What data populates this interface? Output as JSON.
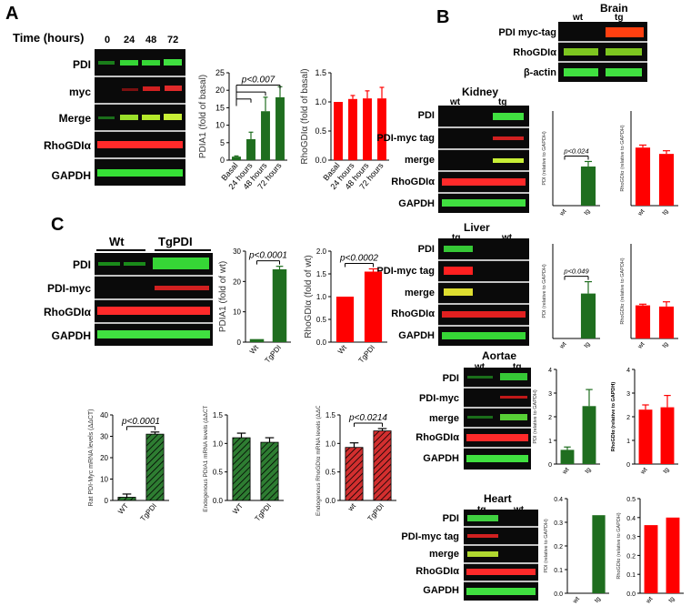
{
  "panels": {
    "A": {
      "letter": "A",
      "time_label": "Time (hours)",
      "time_points": [
        "0",
        "24",
        "48",
        "72"
      ],
      "rows": [
        "PDI",
        "myc",
        "Merge",
        "RhoGDIα",
        "GAPDH"
      ]
    },
    "B": {
      "letter": "B",
      "brain": {
        "title": "Brain",
        "lanes": [
          "wt",
          "tg"
        ],
        "rows": [
          "PDI myc-tag",
          "RhoGDIα",
          "β-actin"
        ]
      },
      "kidney": {
        "title": "Kidney",
        "lanes": [
          "wt",
          "tg"
        ],
        "rows": [
          "PDI",
          "PDI-myc tag",
          "merge",
          "RhoGDIα",
          "GAPDH"
        ]
      },
      "liver": {
        "title": "Liver",
        "lanes": [
          "tg",
          "wt"
        ],
        "rows": [
          "PDI",
          "PDI-myc tag",
          "merge",
          "RhoGDIα",
          "GAPDH"
        ]
      },
      "aortae": {
        "title": "Aortae",
        "lanes": [
          "wt",
          "tg"
        ],
        "rows": [
          "PDI",
          "PDI-myc",
          "merge",
          "RhoGDIα",
          "GAPDH"
        ]
      },
      "heart": {
        "title": "Heart",
        "lanes": [
          "tg",
          "wt"
        ],
        "rows": [
          "PDI",
          "PDI-myc tag",
          "merge",
          "RhoGDIα",
          "GAPDH"
        ]
      }
    },
    "C": {
      "letter": "C",
      "groups": [
        "Wt",
        "TgPDI"
      ],
      "rows": [
        "PDI",
        "PDI-myc",
        "RhoGDIα",
        "GAPDH"
      ]
    }
  },
  "colors": {
    "green": "#1f6e1f",
    "red": "#ff0000",
    "green_hatch": "#2e7d32",
    "red_hatch": "#d32f2f"
  },
  "chart_data": [
    {
      "id": "A-pdia1",
      "type": "bar",
      "categories": [
        "Basal",
        "24 hours",
        "48 hours",
        "72 hours"
      ],
      "values": [
        1,
        6,
        14,
        18
      ],
      "errors": [
        0.2,
        2,
        4,
        3
      ],
      "ylabel": "PDIA1  (fold of basal)",
      "ylim": [
        0,
        25
      ],
      "yticks": [
        "0",
        "5",
        "10",
        "15",
        "20",
        "25"
      ],
      "annotation": "p<0.007",
      "color": "#1f6e1f"
    },
    {
      "id": "A-rhogdi",
      "type": "bar",
      "categories": [
        "Basal",
        "24 hours",
        "48 hours",
        "72 hours"
      ],
      "values": [
        1.0,
        1.05,
        1.06,
        1.06
      ],
      "errors": [
        0,
        0.06,
        0.13,
        0.19
      ],
      "ylabel": "RhoGDIα  (fold of basal)",
      "ylim": [
        0,
        1.5
      ],
      "yticks": [
        "0.0",
        "0.5",
        "1.0",
        "1.5"
      ],
      "color": "#ff0000"
    },
    {
      "id": "B-kidney-pdi",
      "type": "bar",
      "categories": [
        "wt",
        "tg"
      ],
      "values": [
        0,
        0.62
      ],
      "errors": [
        0,
        0.08
      ],
      "ylabel": "PDI (relative to GAPDH)",
      "ylim": [
        0,
        1.5
      ],
      "yticks": [],
      "annotation": "p<0.024",
      "color": "#1f6e1f"
    },
    {
      "id": "B-kidney-rho",
      "type": "bar",
      "categories": [
        "wt",
        "tg"
      ],
      "values": [
        0.92,
        0.82
      ],
      "errors": [
        0.04,
        0.05
      ],
      "ylabel": "RhoGDIα (relative to GAPDH)",
      "ylim": [
        0,
        1.5
      ],
      "yticks": [],
      "color": "#ff0000"
    },
    {
      "id": "B-liver-pdi",
      "type": "bar",
      "categories": [
        "wt",
        "tg"
      ],
      "values": [
        0,
        0.38
      ],
      "errors": [
        0,
        0.1
      ],
      "ylabel": "PDI (relative to GAPDH)",
      "ylim": [
        0,
        0.8
      ],
      "yticks": [],
      "annotation": "p<0.049",
      "color": "#1f6e1f"
    },
    {
      "id": "B-liver-rho",
      "type": "bar",
      "categories": [
        "wt",
        "tg"
      ],
      "values": [
        0.28,
        0.27
      ],
      "errors": [
        0.01,
        0.04
      ],
      "ylabel": "RhoGDIα (relative to GAPDH)",
      "ylim": [
        0,
        0.8
      ],
      "yticks": [],
      "color": "#ff0000"
    },
    {
      "id": "B-aortae-pdi",
      "type": "bar",
      "categories": [
        "wt",
        "tg"
      ],
      "values": [
        0.6,
        2.45
      ],
      "errors": [
        0.12,
        0.7
      ],
      "ylabel": "PDI (relative to GAPDH)",
      "ylim": [
        0,
        4
      ],
      "yticks": [
        "0",
        "1",
        "2",
        "3",
        "4"
      ],
      "color": "#1f6e1f"
    },
    {
      "id": "B-aortae-rho",
      "type": "bar",
      "categories": [
        "wt",
        "tg"
      ],
      "values": [
        2.3,
        2.4
      ],
      "errors": [
        0.2,
        0.5
      ],
      "ylabel": "RhoGDIα (relative to GAPDH)",
      "ylim": [
        0,
        4
      ],
      "yticks": [
        "0",
        "1",
        "2",
        "3",
        "4"
      ],
      "color": "#ff0000"
    },
    {
      "id": "B-heart-pdi",
      "type": "bar",
      "categories": [
        "wt",
        "tg"
      ],
      "values": [
        0,
        0.33
      ],
      "errors": [
        0,
        0
      ],
      "ylabel": "PDI (relative to GAPDH)",
      "ylim": [
        0,
        0.4
      ],
      "yticks": [
        "0.0",
        "0.1",
        "0.2",
        "0.3",
        "0.4"
      ],
      "color": "#1f6e1f"
    },
    {
      "id": "B-heart-rho",
      "type": "bar",
      "categories": [
        "wt",
        "tg"
      ],
      "values": [
        0.36,
        0.4
      ],
      "errors": [
        0,
        0
      ],
      "ylabel": "RhoGDIα (relative to GAPDH)",
      "ylim": [
        0,
        0.5
      ],
      "yticks": [
        "0.0",
        "0.1",
        "0.2",
        "0.3",
        "0.4",
        "0.5"
      ],
      "color": "#ff0000"
    },
    {
      "id": "C-pdia1",
      "type": "bar",
      "categories": [
        "Wt",
        "TgPDI"
      ],
      "values": [
        1,
        24
      ],
      "errors": [
        0,
        1
      ],
      "ylabel": "PDIA1  (fold of wt)",
      "ylim": [
        0,
        30
      ],
      "yticks": [
        "0",
        "10",
        "20",
        "30"
      ],
      "annotation": "p<0.0001",
      "color": "#1f6e1f"
    },
    {
      "id": "C-rhogdi",
      "type": "bar",
      "categories": [
        "Wt",
        "TgPDI"
      ],
      "values": [
        1.0,
        1.55
      ],
      "errors": [
        0,
        0.06
      ],
      "ylabel": "RhoGDIα  (fold of wt)",
      "ylim": [
        0,
        2.0
      ],
      "yticks": [
        "0.0",
        "0.5",
        "1.0",
        "1.5",
        "2.0"
      ],
      "annotation": "p<0.0002",
      "color": "#ff0000"
    },
    {
      "id": "C-mrna-myc",
      "type": "bar",
      "hatched": true,
      "categories": [
        "WT",
        "TgPDI"
      ],
      "values": [
        1.5,
        31
      ],
      "errors": [
        1.5,
        1
      ],
      "ylabel": "Rat PDI-Myc mRNA levels (ΔΔCT)",
      "ylim": [
        0,
        40
      ],
      "yticks": [
        "0",
        "10",
        "20",
        "30",
        "40"
      ],
      "annotation": "p<0.0001",
      "color": "#2e7d32"
    },
    {
      "id": "C-mrna-pdia1",
      "type": "bar",
      "hatched": true,
      "categories": [
        "WT",
        "TgPDI"
      ],
      "values": [
        1.1,
        1.02
      ],
      "errors": [
        0.08,
        0.08
      ],
      "ylabel": "Endogenous PDIA1 mRNA levels (ΔΔCT)",
      "ylim": [
        0,
        1.5
      ],
      "yticks": [
        "0.0",
        "0.5",
        "1.0",
        "1.5"
      ],
      "color": "#2e7d32"
    },
    {
      "id": "C-mrna-rho",
      "type": "bar",
      "hatched": true,
      "categories": [
        "wt",
        "TgPDI"
      ],
      "values": [
        0.93,
        1.22
      ],
      "errors": [
        0.08,
        0.04
      ],
      "ylabel": "Endogenous RhoGDIα mRNA levels (ΔΔCT)",
      "ylim": [
        0,
        1.5
      ],
      "yticks": [
        "0.0",
        "0.5",
        "1.0",
        "1.5"
      ],
      "annotation": "p<0.0214",
      "color": "#d32f2f"
    }
  ]
}
